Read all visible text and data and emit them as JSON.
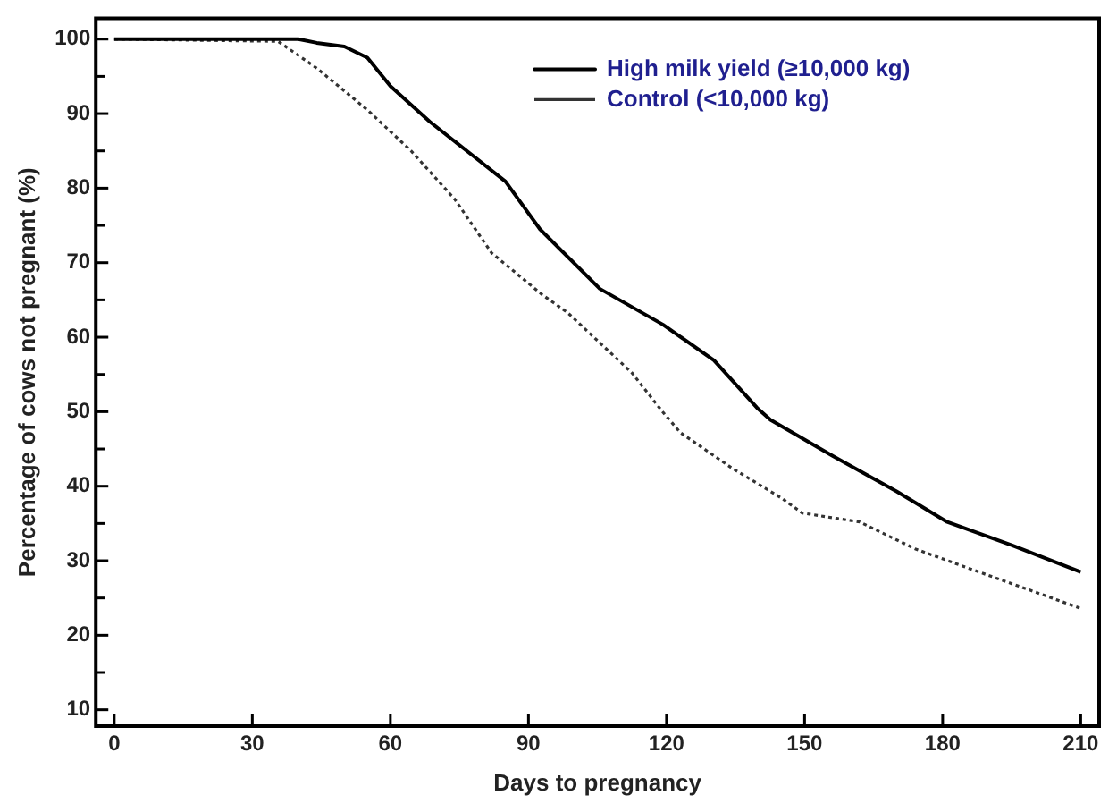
{
  "chart_data": {
    "type": "line",
    "xlabel": "Days to pregnancy",
    "ylabel": "Percentage of cows not pregnant (%)",
    "xlim": [
      -4,
      214
    ],
    "xticks": [
      0,
      30,
      60,
      90,
      120,
      150,
      180,
      210
    ],
    "ylim": [
      7.8,
      102.8
    ],
    "yticks": [
      10,
      {
        "value": 15,
        "label": null
      },
      20,
      {
        "value": 25,
        "label": null
      },
      30,
      {
        "value": 35,
        "label": null
      },
      40,
      {
        "value": 45,
        "label": null
      },
      50,
      {
        "value": 55,
        "label": null
      },
      60,
      {
        "value": 65,
        "label": null
      },
      70,
      {
        "value": 75,
        "label": null
      },
      80,
      {
        "value": 85,
        "label": null
      },
      90,
      {
        "value": 95,
        "label": null
      },
      100
    ],
    "grid": false,
    "legend": "top right",
    "marker": "none",
    "series": [
      {
        "name": "High milk yield (≥10,000 kg)",
        "color": "#000000",
        "line_style": "solid",
        "x": [
          0,
          40,
          44,
          50,
          55,
          60,
          68.6,
          76.8,
          85,
          92.5,
          105.5,
          119.2,
          130.3,
          139.7,
          142.6,
          156,
          170,
          181,
          195,
          210
        ],
        "values": [
          100,
          100,
          99.5,
          99,
          97.5,
          93.7,
          88.9,
          84.9,
          80.9,
          74.5,
          66.5,
          61.7,
          56.9,
          50.5,
          48.9,
          44.1,
          39.3,
          35.2,
          32.1,
          28.5
        ]
      },
      {
        "name": "Control (<10,000 kg)",
        "color": "#333333",
        "line_style": "dotted",
        "x": [
          0,
          35.6,
          44,
          55,
          64.5,
          74,
          82,
          93,
          98.5,
          112.5,
          119,
          123,
          134.3,
          145,
          149.5,
          162,
          174,
          186.5,
          201,
          210
        ],
        "values": [
          100,
          99.7,
          96.1,
          90.5,
          85,
          78.5,
          71.3,
          65.7,
          63.3,
          55.2,
          50.1,
          47.2,
          42.4,
          38.4,
          36.4,
          35.2,
          31.6,
          28.8,
          25.6,
          23.6
        ]
      }
    ]
  }
}
